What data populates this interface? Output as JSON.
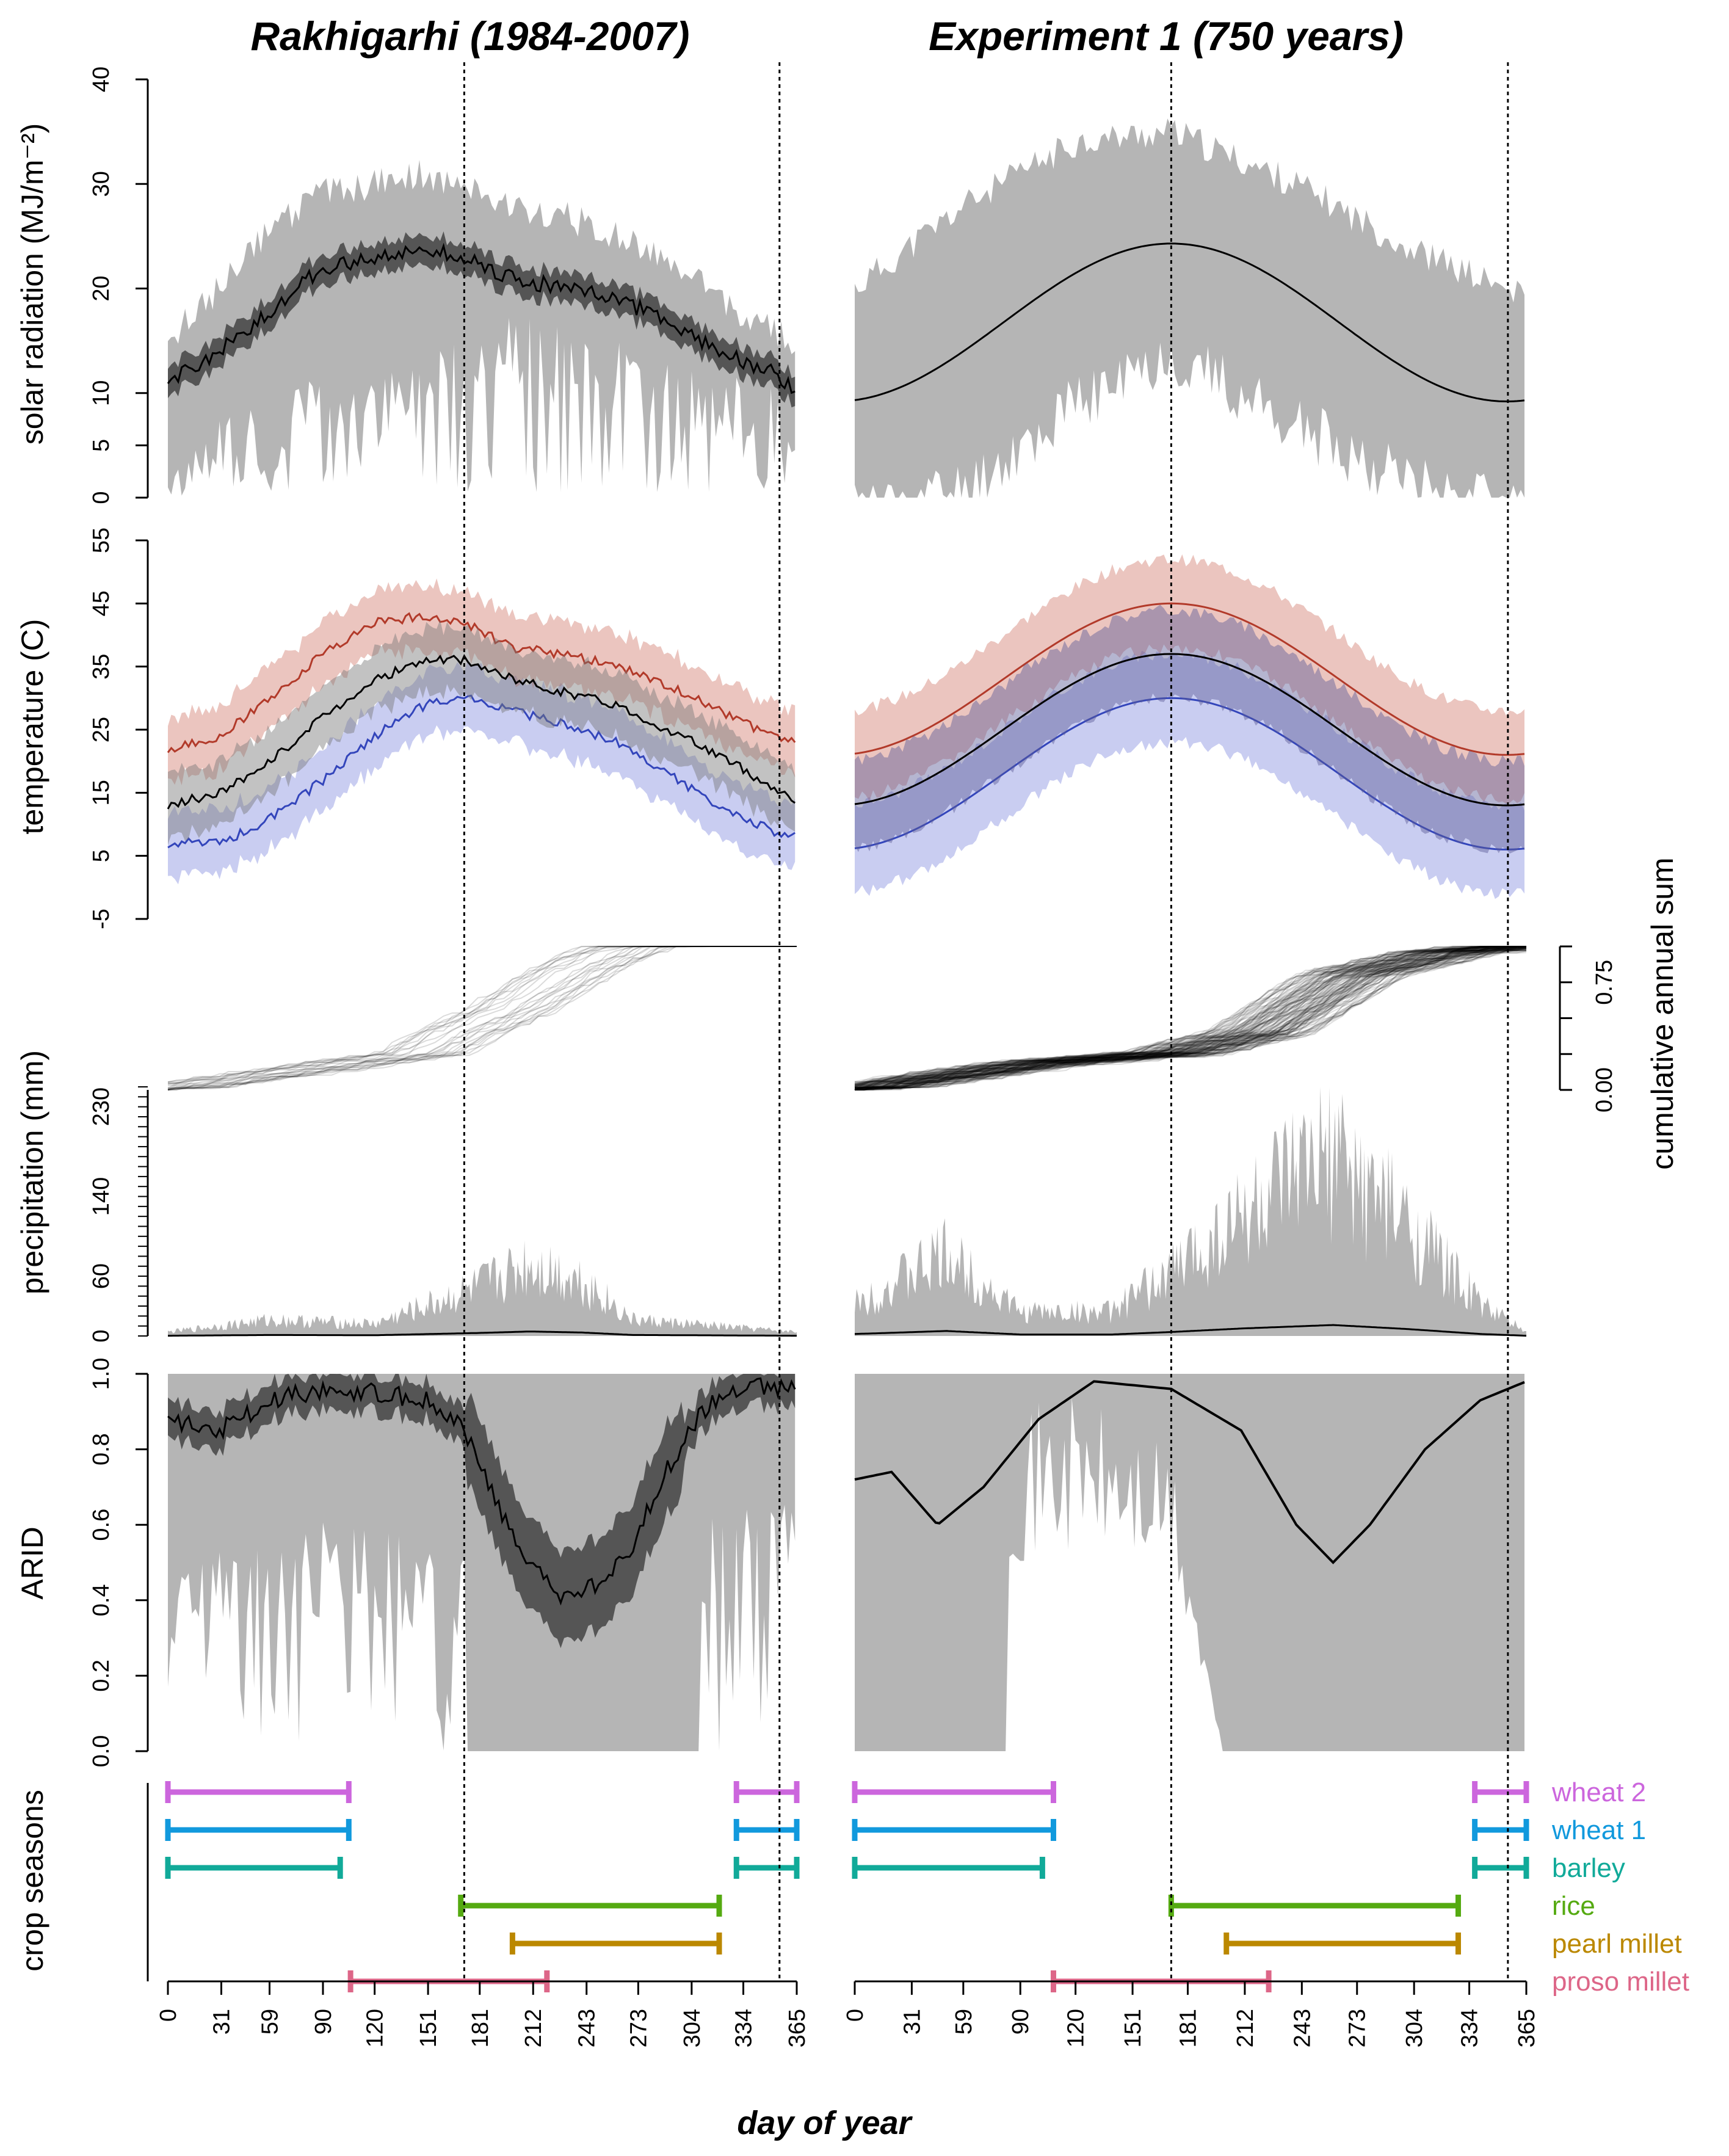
{
  "chart_data": {
    "type": "multi-panel",
    "titles": [
      "Rakhigarhi (1984-2007)",
      "Experiment 1 (750 years)"
    ],
    "xlabel": "day of year",
    "x_ticks": [
      0,
      31,
      59,
      90,
      120,
      151,
      181,
      212,
      243,
      273,
      304,
      334,
      365
    ],
    "vlines": [
      172,
      355
    ],
    "panels": [
      {
        "id": "solar",
        "ylabel": "solar radiation (MJ/m⁻²)",
        "ylim": [
          0,
          40
        ],
        "y_ticks": [
          0,
          5,
          10,
          20,
          30,
          40
        ],
        "y_tick_labels": [
          "0",
          "5",
          "10",
          "20",
          "30",
          "40"
        ],
        "rakhigarhi": {
          "mean": [
            [
              0,
              11
            ],
            [
              30,
              14
            ],
            [
              60,
              18
            ],
            [
              90,
              22
            ],
            [
              120,
              23
            ],
            [
              150,
              24
            ],
            [
              172,
              23
            ],
            [
              200,
              21
            ],
            [
              230,
              20
            ],
            [
              260,
              19
            ],
            [
              290,
              17
            ],
            [
              320,
              14
            ],
            [
              350,
              12
            ],
            [
              365,
              10
            ]
          ],
          "min_envelope": [
            [
              0,
              2
            ],
            [
              30,
              3
            ],
            [
              60,
              4
            ],
            [
              90,
              7
            ],
            [
              120,
              6
            ],
            [
              150,
              8
            ],
            [
              172,
              10
            ],
            [
              200,
              12
            ],
            [
              230,
              11
            ],
            [
              260,
              10
            ],
            [
              290,
              9
            ],
            [
              320,
              7
            ],
            [
              350,
              5
            ],
            [
              365,
              3
            ]
          ],
          "max_envelope": [
            [
              0,
              15
            ],
            [
              30,
              20
            ],
            [
              60,
              26
            ],
            [
              90,
              29
            ],
            [
              120,
              30
            ],
            [
              150,
              31
            ],
            [
              172,
              30
            ],
            [
              200,
              28
            ],
            [
              230,
              27
            ],
            [
              260,
              25
            ],
            [
              290,
              23
            ],
            [
              320,
              19
            ],
            [
              350,
              16
            ],
            [
              365,
              15
            ]
          ]
        },
        "experiment": {
          "mean_min": 9.2,
          "mean_max": 24.3,
          "peak_day": 172,
          "envelope_low": [
            [
              0,
              0
            ],
            [
              60,
              2
            ],
            [
              120,
              10
            ],
            [
              172,
              15
            ],
            [
              240,
              8
            ],
            [
              300,
              3
            ],
            [
              365,
              0
            ]
          ],
          "envelope_high": [
            [
              0,
              20
            ],
            [
              60,
              28
            ],
            [
              120,
              34
            ],
            [
              172,
              35
            ],
            [
              240,
              30
            ],
            [
              300,
              24
            ],
            [
              365,
              19
            ]
          ]
        }
      },
      {
        "id": "temperature",
        "ylabel": "temperature (C)",
        "ylim": [
          -5,
          55
        ],
        "y_ticks": [
          -5,
          5,
          15,
          25,
          35,
          45,
          55
        ],
        "rakhigarhi": {
          "tmax": [
            [
              0,
              22
            ],
            [
              30,
              24
            ],
            [
              60,
              30
            ],
            [
              90,
              37
            ],
            [
              120,
              42
            ],
            [
              150,
              43
            ],
            [
              172,
              42
            ],
            [
              200,
              38
            ],
            [
              230,
              37
            ],
            [
              260,
              35
            ],
            [
              290,
              32
            ],
            [
              320,
              28
            ],
            [
              350,
              24
            ],
            [
              365,
              23
            ]
          ],
          "tmean": [
            [
              0,
              13
            ],
            [
              30,
              15
            ],
            [
              60,
              20
            ],
            [
              90,
              27
            ],
            [
              120,
              33
            ],
            [
              150,
              36
            ],
            [
              172,
              36
            ],
            [
              200,
              33
            ],
            [
              230,
              31
            ],
            [
              260,
              29
            ],
            [
              290,
              25
            ],
            [
              320,
              21
            ],
            [
              350,
              16
            ],
            [
              365,
              14
            ]
          ],
          "tmin": [
            [
              0,
              7
            ],
            [
              30,
              7
            ],
            [
              60,
              11
            ],
            [
              90,
              17
            ],
            [
              120,
              24
            ],
            [
              150,
              29
            ],
            [
              172,
              30
            ],
            [
              200,
              28
            ],
            [
              230,
              26
            ],
            [
              260,
              23
            ],
            [
              290,
              18
            ],
            [
              320,
              13
            ],
            [
              350,
              9
            ],
            [
              365,
              8
            ]
          ]
        },
        "experiment": {
          "tmax_range": [
            21,
            45
          ],
          "tmean_range": [
            13,
            37
          ],
          "tmin_range": [
            6,
            30
          ],
          "peak_day": 172
        }
      },
      {
        "id": "precipitation",
        "ylabel": "precipitation (mm)",
        "y_ticks": [
          0,
          60,
          140,
          230
        ],
        "secondary_ylabel": "cumulative annual sum",
        "secondary_ticks": [
          "0.00",
          "0.75"
        ],
        "rakhigarhi": {
          "cumulative": [
            [
              0,
              0.0
            ],
            [
              150,
              0.25
            ],
            [
              172,
              0.4
            ],
            [
              200,
              0.55
            ],
            [
              240,
              0.85
            ],
            [
              270,
              1.0
            ],
            [
              365,
              1.0
            ]
          ],
          "daily_max": [
            [
              0,
              5
            ],
            [
              60,
              20
            ],
            [
              120,
              15
            ],
            [
              180,
              60
            ],
            [
              210,
              90
            ],
            [
              240,
              70
            ],
            [
              270,
              20
            ],
            [
              365,
              5
            ]
          ]
        },
        "experiment": {
          "cumulative": [
            [
              0,
              0.0
            ],
            [
              100,
              0.18
            ],
            [
              172,
              0.25
            ],
            [
              220,
              0.4
            ],
            [
              270,
              0.8
            ],
            [
              320,
              0.95
            ],
            [
              365,
              1.0
            ]
          ],
          "daily_max": [
            [
              0,
              40
            ],
            [
              50,
              100
            ],
            [
              90,
              30
            ],
            [
              140,
              30
            ],
            [
              172,
              80
            ],
            [
              210,
              150
            ],
            [
              260,
              220
            ],
            [
              300,
              140
            ],
            [
              340,
              40
            ],
            [
              365,
              5
            ]
          ]
        }
      },
      {
        "id": "arid",
        "ylabel": "ARID",
        "ylim": [
          0,
          1
        ],
        "y_ticks": [
          0.0,
          0.2,
          0.4,
          0.6,
          0.8,
          1.0
        ],
        "y_tick_labels": [
          "0.0",
          "0.2",
          "0.4",
          "0.6",
          "0.8",
          "1.0"
        ],
        "rakhigarhi": {
          "mean": [
            [
              0,
              0.88
            ],
            [
              30,
              0.85
            ],
            [
              60,
              0.93
            ],
            [
              90,
              0.96
            ],
            [
              120,
              0.95
            ],
            [
              150,
              0.93
            ],
            [
              172,
              0.85
            ],
            [
              190,
              0.66
            ],
            [
              210,
              0.5
            ],
            [
              230,
              0.4
            ],
            [
              250,
              0.45
            ],
            [
              270,
              0.55
            ],
            [
              290,
              0.75
            ],
            [
              310,
              0.9
            ],
            [
              330,
              0.96
            ],
            [
              365,
              0.97
            ]
          ],
          "upper": [
            [
              0,
              1
            ],
            [
              365,
              1
            ]
          ]
        },
        "experiment": {
          "mean": [
            [
              0,
              0.72
            ],
            [
              20,
              0.74
            ],
            [
              45,
              0.6
            ],
            [
              70,
              0.7
            ],
            [
              100,
              0.88
            ],
            [
              130,
              0.98
            ],
            [
              172,
              0.96
            ],
            [
              210,
              0.85
            ],
            [
              240,
              0.6
            ],
            [
              260,
              0.5
            ],
            [
              280,
              0.6
            ],
            [
              310,
              0.8
            ],
            [
              340,
              0.93
            ],
            [
              365,
              0.98
            ]
          ],
          "gap_low": [
            [
              80,
              0.9
            ],
            [
              120,
              0.95
            ],
            [
              172,
              0.8
            ],
            [
              200,
              0.0
            ]
          ]
        }
      }
    ],
    "crop_seasons": {
      "ylabel": "crop seasons",
      "crops": [
        {
          "name": "wheat 2",
          "color": "#cc66dd",
          "rakhigarhi": [
            [
              0,
              105
            ],
            [
              330,
              365
            ]
          ],
          "experiment": [
            [
              0,
              108
            ],
            [
              337,
              365
            ]
          ]
        },
        {
          "name": "wheat 1",
          "color": "#1199dd",
          "rakhigarhi": [
            [
              0,
              105
            ],
            [
              330,
              365
            ]
          ],
          "experiment": [
            [
              0,
              108
            ],
            [
              337,
              365
            ]
          ]
        },
        {
          "name": "barley",
          "color": "#11aa99",
          "rakhigarhi": [
            [
              0,
              100
            ],
            [
              330,
              365
            ]
          ],
          "experiment": [
            [
              0,
              102
            ],
            [
              337,
              365
            ]
          ]
        },
        {
          "name": "rice",
          "color": "#55aa11",
          "rakhigarhi": [
            [
              170,
              320
            ]
          ],
          "experiment": [
            [
              172,
              328
            ]
          ]
        },
        {
          "name": "pearl millet",
          "color": "#bb8800",
          "rakhigarhi": [
            [
              200,
              320
            ]
          ],
          "experiment": [
            [
              202,
              328
            ]
          ]
        },
        {
          "name": "proso millet",
          "color": "#dd6688",
          "rakhigarhi": [
            [
              106,
              220
            ]
          ],
          "experiment": [
            [
              108,
              225
            ]
          ]
        }
      ]
    }
  }
}
